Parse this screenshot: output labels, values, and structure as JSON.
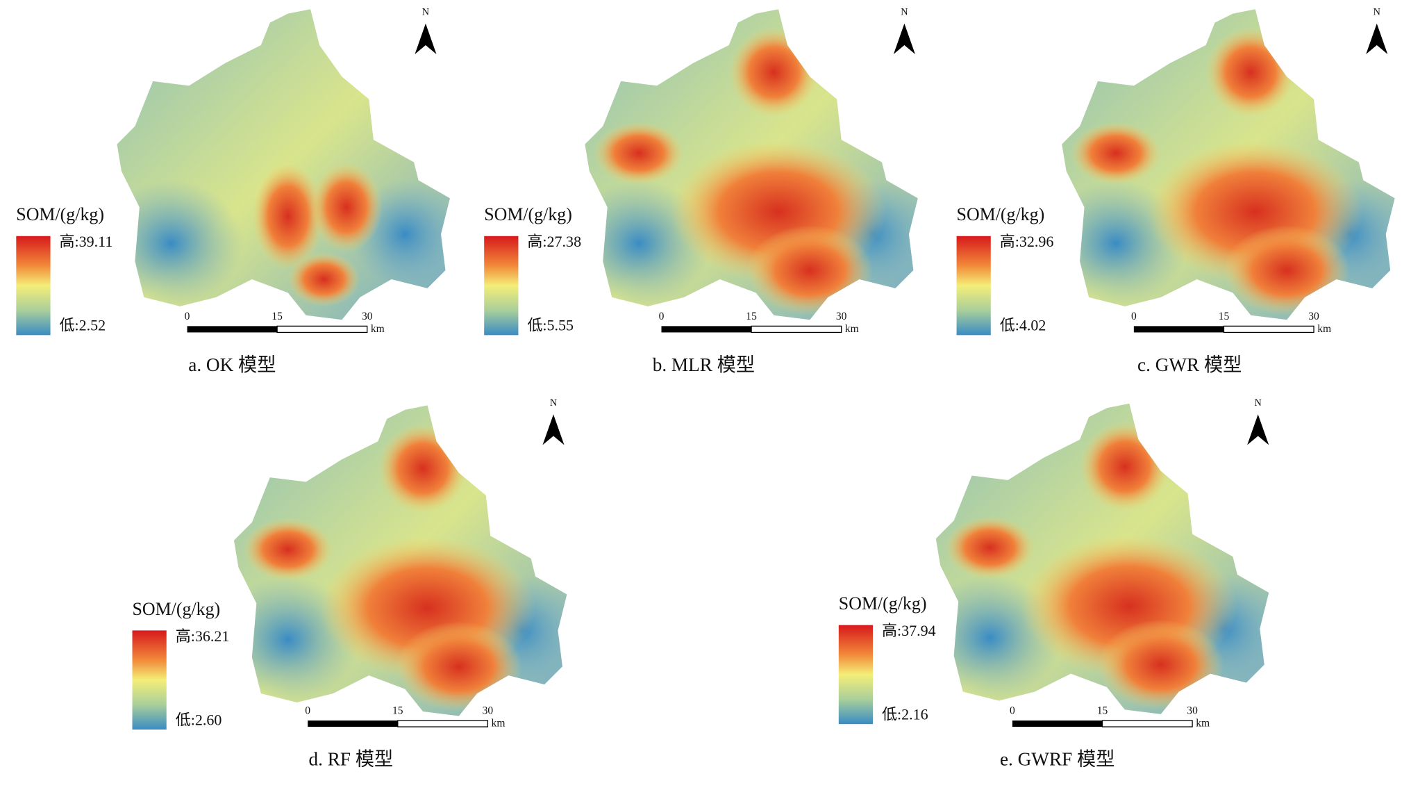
{
  "panels": [
    {
      "legend_title": "SOM/(g/kg)",
      "high_label": "高:39.11",
      "low_label": "低:2.52",
      "scale_labels": [
        "0",
        "15",
        "30",
        "km"
      ],
      "north": "N",
      "caption": "a. OK 模型"
    },
    {
      "legend_title": "SOM/(g/kg)",
      "high_label": "高:27.38",
      "low_label": "低:5.55",
      "scale_labels": [
        "0",
        "15",
        "30",
        "km"
      ],
      "north": "N",
      "caption": "b. MLR 模型"
    },
    {
      "legend_title": "SOM/(g/kg)",
      "high_label": "高:32.96",
      "low_label": "低:4.02",
      "scale_labels": [
        "0",
        "15",
        "30",
        "km"
      ],
      "north": "N",
      "caption": "c. GWR 模型"
    },
    {
      "legend_title": "SOM/(g/kg)",
      "high_label": "高:36.21",
      "low_label": "低:2.60",
      "scale_labels": [
        "0",
        "15",
        "30",
        "km"
      ],
      "north": "N",
      "caption": "d. RF 模型"
    },
    {
      "legend_title": "SOM/(g/kg)",
      "high_label": "高:37.94",
      "low_label": "低:2.16",
      "scale_labels": [
        "0",
        "15",
        "30",
        "km"
      ],
      "north": "N",
      "caption": "e. GWRF 模型"
    }
  ]
}
